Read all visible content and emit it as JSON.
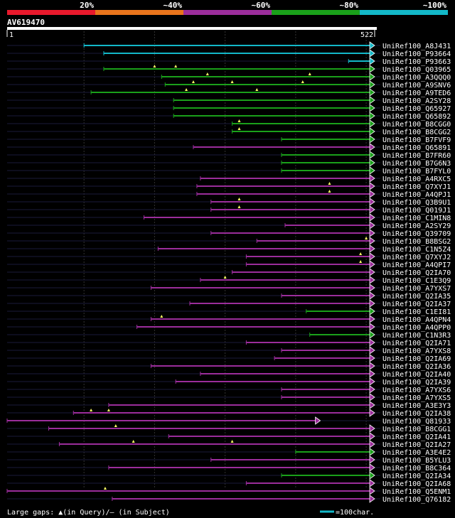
{
  "chart_data": {
    "type": "alignment",
    "title": "AV619470",
    "query_start": "1",
    "query_end": "522",
    "query_length": 522,
    "identity_legend": [
      {
        "label": "20%",
        "color": "#e8192c"
      },
      {
        "label": "~40%",
        "color": "#e8741c"
      },
      {
        "label": "~60%",
        "color": "#9b2d9b"
      },
      {
        "label": "~80%",
        "color": "#1aa01a"
      },
      {
        "label": "~100%",
        "color": "#13b8c8"
      }
    ],
    "footer_gaps_text": "Large gaps: ▲(in Query)/– (in Subject)",
    "scale_text": "=100char.",
    "hits": [
      {
        "id": "UniRef100_A8J431",
        "start": 110,
        "end": 522,
        "color": "#13b8c8",
        "tick": [],
        "tris": []
      },
      {
        "id": "UniRef100_P93664",
        "start": 138,
        "end": 522,
        "color": "#13b8c8",
        "tick": [],
        "tris": []
      },
      {
        "id": "UniRef100_P93663",
        "start": 485,
        "end": 522,
        "color": "#13b8c8",
        "tick": [],
        "tris": []
      },
      {
        "id": "UniRef100_Q03965",
        "start": 138,
        "end": 522,
        "color": "#1aa01a",
        "tick": [],
        "tris": [
          210,
          240
        ]
      },
      {
        "id": "UniRef100_A3QQQ0",
        "start": 220,
        "end": 522,
        "color": "#1aa01a",
        "tick": [],
        "tris": [
          285,
          430
        ]
      },
      {
        "id": "UniRef100_A9SNV6",
        "start": 225,
        "end": 522,
        "color": "#1aa01a",
        "tick": [],
        "tris": [
          265,
          320,
          420
        ]
      },
      {
        "id": "UniRef100_A9TED6",
        "start": 120,
        "end": 522,
        "color": "#1aa01a",
        "tick": [],
        "tris": [
          255,
          355
        ]
      },
      {
        "id": "UniRef100_A2SY28",
        "start": 237,
        "end": 522,
        "color": "#1aa01a",
        "tick": [],
        "tris": []
      },
      {
        "id": "UniRef100_Q65927",
        "start": 237,
        "end": 522,
        "color": "#1aa01a",
        "tick": [],
        "tris": []
      },
      {
        "id": "UniRef100_Q65892",
        "start": 237,
        "end": 522,
        "color": "#1aa01a",
        "tick": [],
        "tris": []
      },
      {
        "id": "UniRef100_B8CGG0",
        "start": 320,
        "end": 522,
        "color": "#1aa01a",
        "tick": [],
        "tris": [
          330
        ]
      },
      {
        "id": "UniRef100_B8CGG2",
        "start": 320,
        "end": 522,
        "color": "#1aa01a",
        "tick": [],
        "tris": [
          330
        ]
      },
      {
        "id": "UniRef100_B7FVF9",
        "start": 390,
        "end": 522,
        "color": "#1aa01a",
        "tick": [],
        "tris": []
      },
      {
        "id": "UniRef100_Q65891",
        "start": 265,
        "end": 522,
        "color": "#9b2d9b",
        "tick": [],
        "tris": []
      },
      {
        "id": "UniRef100_B7FR60",
        "start": 390,
        "end": 522,
        "color": "#1aa01a",
        "tick": [],
        "tris": []
      },
      {
        "id": "UniRef100_B7G6N3",
        "start": 390,
        "end": 522,
        "color": "#1aa01a",
        "tick": [],
        "tris": []
      },
      {
        "id": "UniRef100_B7FYL0",
        "start": 390,
        "end": 522,
        "color": "#1aa01a",
        "tick": [],
        "tris": []
      },
      {
        "id": "UniRef100_A4RXC5",
        "start": 275,
        "end": 522,
        "color": "#9b2d9b",
        "tick": [],
        "tris": []
      },
      {
        "id": "UniRef100_Q7XYJ1",
        "start": 270,
        "end": 522,
        "color": "#9b2d9b",
        "tick": [],
        "tris": [
          458
        ]
      },
      {
        "id": "UniRef100_A4QPJ1",
        "start": 270,
        "end": 522,
        "color": "#9b2d9b",
        "tick": [],
        "tris": [
          458
        ]
      },
      {
        "id": "UniRef100_Q3B9U1",
        "start": 290,
        "end": 522,
        "color": "#9b2d9b",
        "tick": [],
        "tris": [
          330
        ]
      },
      {
        "id": "UniRef100_Q019J1",
        "start": 290,
        "end": 522,
        "color": "#9b2d9b",
        "tick": [],
        "tris": [
          330
        ]
      },
      {
        "id": "UniRef100_C1MIN8",
        "start": 195,
        "end": 522,
        "color": "#9b2d9b",
        "tick": [],
        "tris": []
      },
      {
        "id": "UniRef100_A2SY29",
        "start": 395,
        "end": 522,
        "color": "#9b2d9b",
        "tick": [],
        "tris": []
      },
      {
        "id": "UniRef100_Q39709",
        "start": 290,
        "end": 522,
        "color": "#9b2d9b",
        "tick": [],
        "tris": []
      },
      {
        "id": "UniRef100_B8BSG2",
        "start": 355,
        "end": 522,
        "color": "#9b2d9b",
        "tick": [],
        "tris": [
          510
        ]
      },
      {
        "id": "UniRef100_C1N5Z4",
        "start": 215,
        "end": 522,
        "color": "#9b2d9b",
        "tick": [],
        "tris": []
      },
      {
        "id": "UniRef100_Q7XYJ2",
        "start": 340,
        "end": 522,
        "color": "#9b2d9b",
        "tick": [],
        "tris": [
          502
        ]
      },
      {
        "id": "UniRef100_A4QPI7",
        "start": 340,
        "end": 522,
        "color": "#9b2d9b",
        "tick": [],
        "tris": [
          502
        ]
      },
      {
        "id": "UniRef100_Q2IA70",
        "start": 320,
        "end": 522,
        "color": "#9b2d9b",
        "tick": [],
        "tris": []
      },
      {
        "id": "UniRef100_C1E3Q9",
        "start": 275,
        "end": 522,
        "color": "#9b2d9b",
        "tick": [],
        "tris": [
          310
        ]
      },
      {
        "id": "UniRef100_A7YXS7",
        "start": 205,
        "end": 522,
        "color": "#9b2d9b",
        "tick": [],
        "tris": []
      },
      {
        "id": "UniRef100_Q2IA35",
        "start": 390,
        "end": 522,
        "color": "#9b2d9b",
        "tick": [],
        "tris": []
      },
      {
        "id": "UniRef100_Q2IA37",
        "start": 260,
        "end": 522,
        "color": "#9b2d9b",
        "tick": [],
        "tris": []
      },
      {
        "id": "UniRef100_C1EI81",
        "start": 425,
        "end": 522,
        "color": "#1aa01a",
        "tick": [],
        "tris": []
      },
      {
        "id": "UniRef100_A4QPN4",
        "start": 205,
        "end": 522,
        "color": "#9b2d9b",
        "tick": [],
        "tris": [
          220
        ]
      },
      {
        "id": "UniRef100_A4QPP0",
        "start": 185,
        "end": 522,
        "color": "#9b2d9b",
        "tick": [],
        "tris": []
      },
      {
        "id": "UniRef100_C1N3R3",
        "start": 430,
        "end": 522,
        "color": "#1aa01a",
        "tick": [],
        "tris": []
      },
      {
        "id": "UniRef100_Q2IA71",
        "start": 340,
        "end": 522,
        "color": "#9b2d9b",
        "tick": [],
        "tris": []
      },
      {
        "id": "UniRef100_A7YXS8",
        "start": 390,
        "end": 522,
        "color": "#9b2d9b",
        "tick": [],
        "tris": []
      },
      {
        "id": "UniRef100_Q2IA69",
        "start": 380,
        "end": 522,
        "color": "#9b2d9b",
        "tick": [],
        "tris": []
      },
      {
        "id": "UniRef100_Q2IA36",
        "start": 205,
        "end": 522,
        "color": "#9b2d9b",
        "tick": [],
        "tris": []
      },
      {
        "id": "UniRef100_Q2IA40",
        "start": 275,
        "end": 522,
        "color": "#9b2d9b",
        "tick": [],
        "tris": []
      },
      {
        "id": "UniRef100_Q2IA39",
        "start": 240,
        "end": 522,
        "color": "#9b2d9b",
        "tick": [],
        "tris": []
      },
      {
        "id": "UniRef100_A7YXS6",
        "start": 390,
        "end": 522,
        "color": "#9b2d9b",
        "tick": [],
        "tris": []
      },
      {
        "id": "UniRef100_A7YXS5",
        "start": 390,
        "end": 522,
        "color": "#9b2d9b",
        "tick": [],
        "tris": []
      },
      {
        "id": "UniRef100_A3E3Y3",
        "start": 145,
        "end": 522,
        "color": "#9b2d9b",
        "tick": [],
        "tris": []
      },
      {
        "id": "UniRef100_Q2IA38",
        "start": 95,
        "end": 522,
        "color": "#9b2d9b",
        "tick": [],
        "tris": [
          120,
          145
        ]
      },
      {
        "id": "UniRef100_Q81933",
        "start": 1,
        "end": 445,
        "color": "#9b2d9b",
        "tick": [],
        "tris": []
      },
      {
        "id": "UniRef100_B8CGG1",
        "start": 60,
        "end": 522,
        "color": "#9b2d9b",
        "tick": [],
        "tris": [
          155
        ]
      },
      {
        "id": "UniRef100_Q2IA41",
        "start": 230,
        "end": 522,
        "color": "#9b2d9b",
        "tick": [],
        "tris": []
      },
      {
        "id": "UniRef100_Q2IA27",
        "start": 75,
        "end": 522,
        "color": "#9b2d9b",
        "tick": [],
        "tris": [
          180,
          320
        ]
      },
      {
        "id": "UniRef100_A3E4E2",
        "start": 410,
        "end": 522,
        "color": "#1aa01a",
        "tick": [],
        "tris": []
      },
      {
        "id": "UniRef100_B5YLU3",
        "start": 290,
        "end": 522,
        "color": "#9b2d9b",
        "tick": [],
        "tris": []
      },
      {
        "id": "UniRef100_B8C364",
        "start": 145,
        "end": 522,
        "color": "#9b2d9b",
        "tick": [],
        "tris": []
      },
      {
        "id": "UniRef100_Q2IA34",
        "start": 390,
        "end": 522,
        "color": "#1aa01a",
        "tick": [],
        "tris": []
      },
      {
        "id": "UniRef100_Q2IA68",
        "start": 340,
        "end": 522,
        "color": "#9b2d9b",
        "tick": [],
        "tris": []
      },
      {
        "id": "UniRef100_Q5ENM1",
        "start": 1,
        "end": 522,
        "color": "#9b2d9b",
        "tick": [],
        "tris": [
          140
        ]
      },
      {
        "id": "UniRef100_Q76182",
        "start": 150,
        "end": 522,
        "color": "#9b2d9b",
        "tick": [],
        "tris": []
      }
    ]
  }
}
